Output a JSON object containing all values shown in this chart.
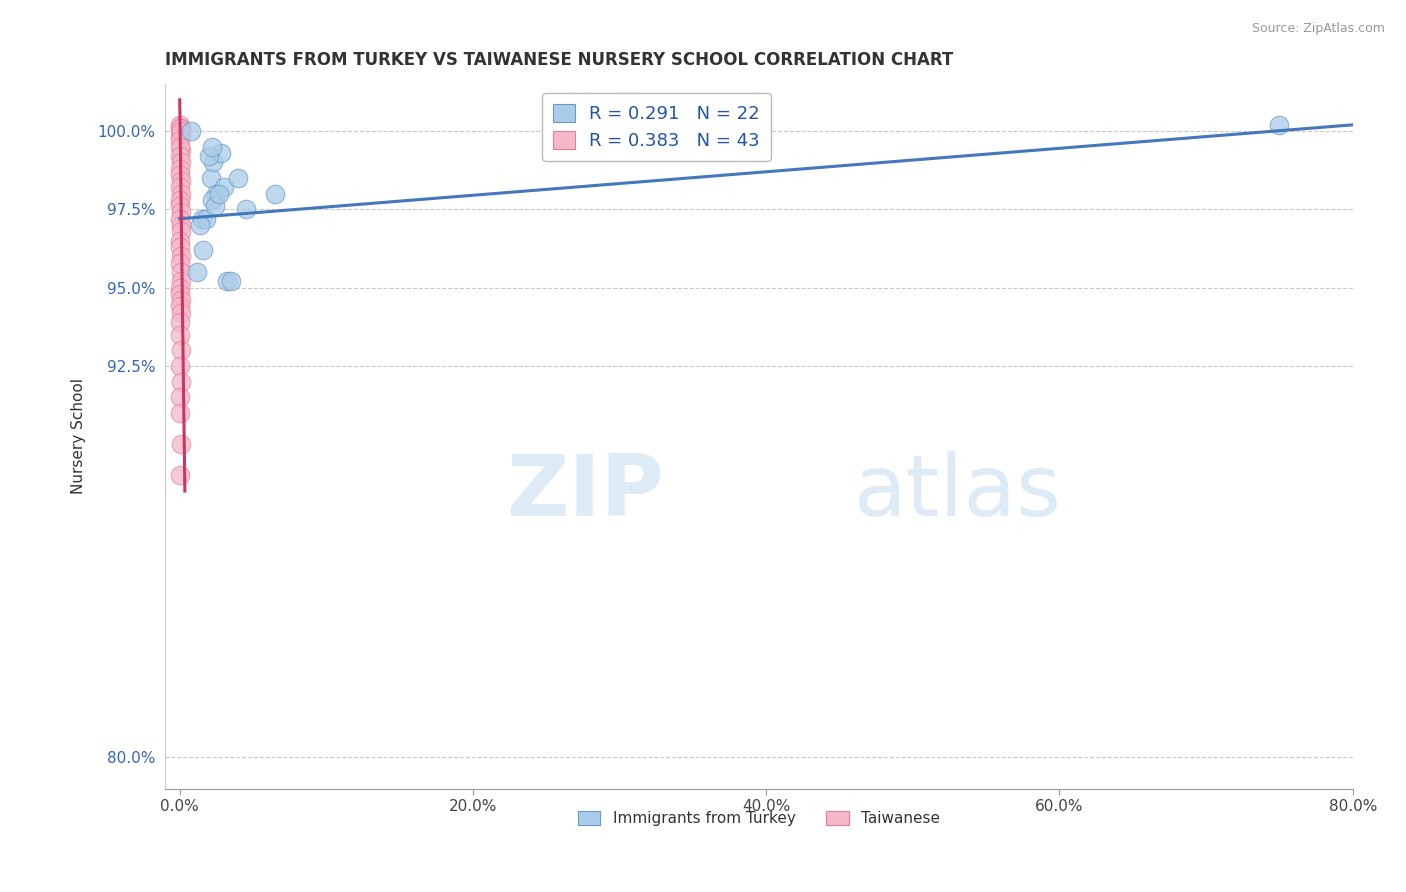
{
  "title": "IMMIGRANTS FROM TURKEY VS TAIWANESE NURSERY SCHOOL CORRELATION CHART",
  "source_text": "Source: ZipAtlas.com",
  "xlabel": "",
  "ylabel": "Nursery School",
  "xlim": [
    -1.0,
    80.0
  ],
  "ylim": [
    79.0,
    101.5
  ],
  "yticks": [
    80.0,
    92.5,
    95.0,
    97.5,
    100.0
  ],
  "ytick_labels": [
    "80.0%",
    "92.5%",
    "95.0%",
    "97.5%",
    "100.0%"
  ],
  "xticks": [
    0.0,
    20.0,
    40.0,
    60.0,
    80.0
  ],
  "xtick_labels": [
    "0.0%",
    "20.0%",
    "40.0%",
    "60.0%",
    "80.0%"
  ],
  "blue_color": "#aacce8",
  "pink_color": "#f5b8c8",
  "blue_edge": "#6699cc",
  "pink_edge": "#e08098",
  "trend_blue": "#4477bb",
  "trend_pink": "#cc3366",
  "legend_r_blue": "0.291",
  "legend_n_blue": "22",
  "legend_r_pink": "0.383",
  "legend_n_pink": "43",
  "legend_label_blue": "Immigrants from Turkey",
  "legend_label_pink": "Taiwanese",
  "watermark_zip": "ZIP",
  "watermark_atlas": "atlas",
  "background_color": "#ffffff",
  "grid_color": "#bbbbbb",
  "blue_x": [
    0.8,
    2.1,
    2.3,
    2.8,
    1.5,
    2.5,
    2.2,
    3.0,
    1.2,
    1.8,
    3.2,
    2.0,
    1.6,
    2.4,
    4.0,
    2.7,
    75.0,
    1.4,
    2.2,
    3.5,
    6.5,
    4.5
  ],
  "blue_y": [
    100.0,
    98.5,
    99.0,
    99.3,
    97.2,
    98.0,
    97.8,
    98.2,
    95.5,
    97.2,
    95.2,
    99.2,
    96.2,
    97.6,
    98.5,
    98.0,
    100.2,
    97.0,
    99.5,
    95.2,
    98.0,
    97.5
  ],
  "pink_x": [
    0.05,
    0.05,
    0.08,
    0.06,
    0.05,
    0.04,
    0.07,
    0.05,
    0.06,
    0.04,
    0.05,
    0.06,
    0.05,
    0.04,
    0.06,
    0.05,
    0.07,
    0.05,
    0.04,
    0.08,
    0.05,
    0.07,
    0.06,
    0.04,
    0.05,
    0.06,
    0.05,
    0.07,
    0.08,
    0.05,
    0.04,
    0.06,
    0.05,
    0.07,
    0.05,
    0.04,
    0.06,
    0.05,
    0.07,
    0.05,
    0.04,
    0.06,
    0.05
  ],
  "pink_y": [
    100.2,
    100.0,
    100.1,
    99.9,
    99.8,
    100.1,
    100.0,
    99.7,
    99.4,
    99.5,
    99.2,
    99.0,
    98.8,
    98.6,
    98.4,
    98.2,
    98.0,
    97.8,
    97.6,
    97.4,
    97.2,
    97.0,
    96.8,
    96.5,
    96.3,
    96.0,
    95.8,
    95.5,
    95.2,
    95.0,
    94.8,
    94.6,
    94.4,
    94.2,
    93.9,
    93.5,
    93.0,
    92.5,
    92.0,
    91.5,
    91.0,
    90.0,
    89.0
  ],
  "blue_trend_x0": 0.0,
  "blue_trend_y0": 97.2,
  "blue_trend_x1": 80.0,
  "blue_trend_y1": 100.2,
  "pink_trend_x0": 0.0,
  "pink_trend_y0": 101.0,
  "pink_trend_x1": 0.35,
  "pink_trend_y1": 88.5
}
